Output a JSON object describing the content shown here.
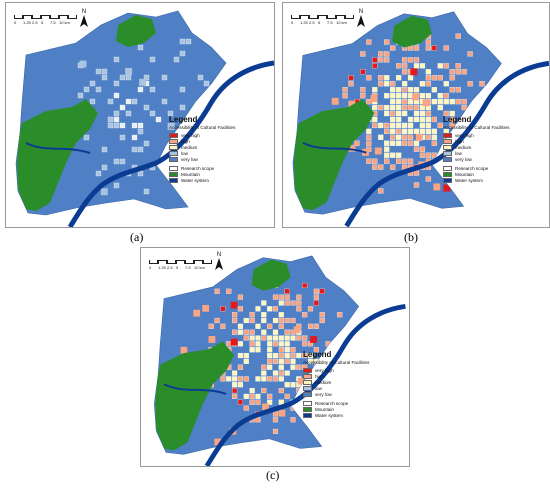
{
  "colors": {
    "very_high": "#e31a1c",
    "high": "#f7a584",
    "medium": "#fdf6c0",
    "low": "#a9c4df",
    "very_low": "#4f7fc4",
    "research_scope": "#ffffff",
    "mountain": "#2a8d2a",
    "water": "#0b3c93"
  },
  "scalebar": {
    "labels": [
      "0",
      "1.25",
      "2.5",
      "5",
      "7.5",
      "10 km"
    ]
  },
  "north_label": "N",
  "legend": {
    "title": "Legend",
    "subtitle": "Accessibility of Cultural Facilities",
    "items": [
      {
        "label": "very high",
        "color": "#e31a1c"
      },
      {
        "label": "high",
        "color": "#f7a584"
      },
      {
        "label": "medium",
        "color": "#fdf6c0"
      },
      {
        "label": "low",
        "color": "#a9c4df"
      },
      {
        "label": "very low",
        "color": "#4f7fc4"
      }
    ],
    "other": [
      {
        "label": "Research scope",
        "color": "#ffffff"
      },
      {
        "label": "Mountain",
        "color": "#2a8d2a"
      },
      {
        "label": "Water system",
        "color": "#0b3c93"
      }
    ]
  },
  "panels": [
    {
      "caption": "(a)",
      "level": "sparse"
    },
    {
      "caption": "(b)",
      "level": "dense"
    },
    {
      "caption": "(c)",
      "level": "medium"
    }
  ]
}
